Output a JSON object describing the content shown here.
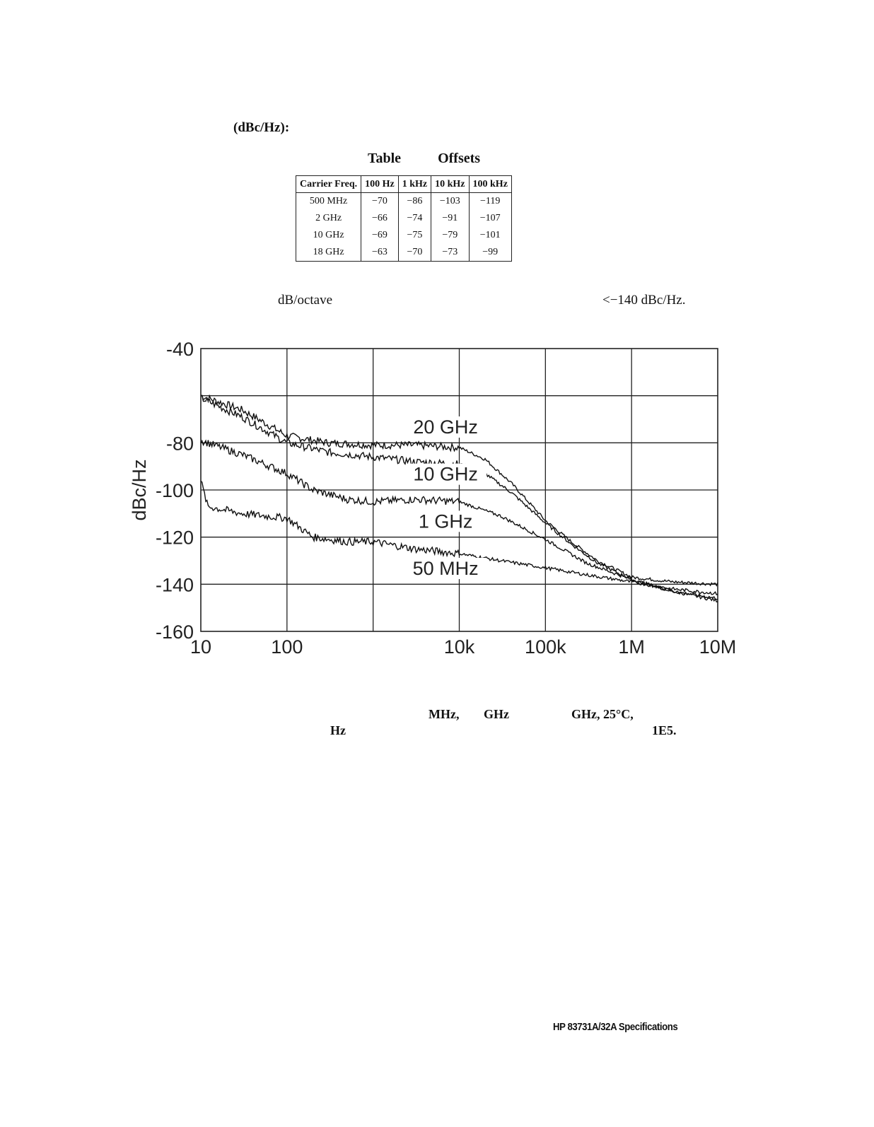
{
  "heading": "(dBc/Hz):",
  "table_title": {
    "left": "Table",
    "right": "Offsets"
  },
  "table": {
    "headers": [
      "Carrier Freq.",
      "100 Hz",
      "1 kHz",
      "10 kHz",
      "100 kHz"
    ],
    "rows": [
      [
        "500 MHz",
        "−70",
        "−86",
        "−103",
        "−119"
      ],
      [
        "2 GHz",
        "−66",
        "−74",
        "−91",
        "−107"
      ],
      [
        "10 GHz",
        "−69",
        "−75",
        "−79",
        "−101"
      ],
      [
        "18 GHz",
        "−63",
        "−70",
        "−73",
        "−99"
      ]
    ]
  },
  "text_line": {
    "left": "dB/octave",
    "right": "<−140 dBc/Hz."
  },
  "chart_data": {
    "type": "line",
    "ylabel": "dBc/Hz",
    "xlabel": "",
    "x_scale": "log",
    "xlim": [
      10,
      10000000
    ],
    "ylim": [
      -160,
      -40
    ],
    "x_ticks": [
      "10",
      "100",
      "",
      "10k",
      "100k",
      "1M",
      "10M"
    ],
    "y_ticks": [
      "-40",
      "",
      "-80",
      "-100",
      "-120",
      "-140",
      "-160"
    ],
    "grid": true,
    "series": [
      {
        "name": "20 GHz",
        "x": [
          10,
          30,
          100,
          300,
          1000,
          3000,
          10000,
          20000,
          40000,
          100000,
          200000,
          400000,
          1000000,
          3000000,
          10000000
        ],
        "y": [
          -60,
          -66,
          -77,
          -80,
          -81,
          -81,
          -82,
          -87,
          -97,
          -113,
          -122,
          -130,
          -137,
          -139,
          -140
        ]
      },
      {
        "name": "10 GHz",
        "x": [
          10,
          30,
          100,
          300,
          1000,
          3000,
          10000,
          20000,
          40000,
          100000,
          200000,
          400000,
          1000000,
          3000000,
          10000000
        ],
        "y": [
          -61,
          -69,
          -80,
          -84,
          -86,
          -88,
          -89,
          -93,
          -101,
          -114,
          -123,
          -131,
          -138,
          -143,
          -147
        ]
      },
      {
        "name": "1 GHz",
        "x": [
          10,
          30,
          100,
          200,
          500,
          1000,
          3000,
          10000,
          30000,
          100000,
          300000,
          1000000,
          3000000,
          10000000
        ],
        "y": [
          -79,
          -85,
          -93,
          -100,
          -104,
          -105,
          -104,
          -105,
          -111,
          -121,
          -131,
          -138,
          -143,
          -146
        ]
      },
      {
        "name": "50 MHz",
        "x": [
          10,
          12,
          30,
          100,
          200,
          500,
          1000,
          3000,
          10000,
          30000,
          100000,
          300000,
          1000000,
          3000000,
          10000000
        ],
        "y": [
          -96,
          -107,
          -110,
          -112,
          -120,
          -122,
          -122,
          -125,
          -127,
          -130,
          -133,
          -136,
          -139,
          -142,
          -144
        ]
      }
    ]
  },
  "caption": {
    "line1": [
      "MHz,",
      "GHz",
      "GHz, 25°C,"
    ],
    "line2": [
      "Hz",
      "1E5."
    ]
  },
  "footer": "HP 83731A/32A Specifications"
}
